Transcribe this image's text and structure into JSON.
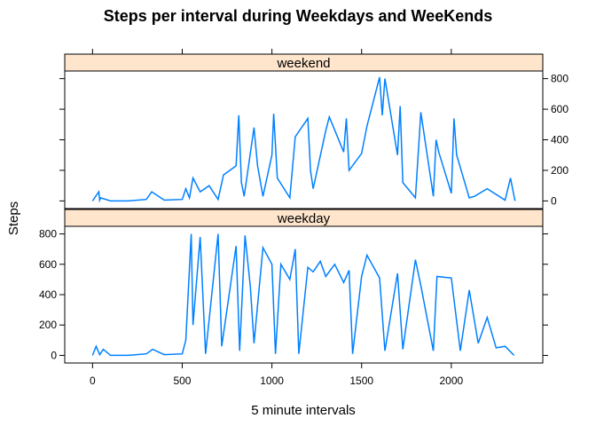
{
  "chart_data": {
    "type": "line",
    "title": "Steps per interval during Weekdays and WeeKends",
    "xlabel": "5 minute intervals",
    "ylabel": "Steps",
    "xlim": [
      -155,
      2510
    ],
    "ylim": [
      -50,
      850
    ],
    "xticks": [
      0,
      500,
      1000,
      1500,
      2000
    ],
    "yticks": [
      0,
      200,
      400,
      600,
      800
    ],
    "grid": false,
    "colors": {
      "line": "#0080ff",
      "strip": "#ffe5cc",
      "frame": "#000000"
    },
    "panels": [
      {
        "label": "weekend",
        "y_axis_side": "right",
        "series": [
          {
            "x": [
              0,
              35,
              40,
              45,
              100,
              200,
              300,
              330,
              400,
              500,
              520,
              540,
              560,
              600,
              650,
              700,
              730,
              800,
              815,
              830,
              845,
              900,
              920,
              950,
              1000,
              1010,
              1030,
              1100,
              1130,
              1200,
              1215,
              1230,
              1300,
              1320,
              1400,
              1415,
              1430,
              1500,
              1530,
              1600,
              1615,
              1630,
              1700,
              1715,
              1730,
              1800,
              1830,
              1900,
              1915,
              1930,
              2000,
              2015,
              2030,
              2100,
              2130,
              2200,
              2300,
              2330,
              2355
            ],
            "y": [
              0,
              60,
              5,
              20,
              0,
              0,
              10,
              60,
              5,
              10,
              80,
              20,
              150,
              60,
              100,
              10,
              170,
              230,
              560,
              120,
              30,
              480,
              230,
              30,
              300,
              570,
              150,
              20,
              420,
              540,
              200,
              80,
              460,
              550,
              320,
              540,
              200,
              310,
              490,
              810,
              560,
              800,
              300,
              620,
              120,
              20,
              580,
              30,
              400,
              320,
              50,
              540,
              300,
              20,
              30,
              80,
              5,
              150,
              0
            ]
          }
        ]
      },
      {
        "label": "weekday",
        "y_axis_side": "left",
        "series": [
          {
            "x": [
              0,
              20,
              40,
              60,
              100,
              200,
              300,
              335,
              400,
              500,
              520,
              550,
              560,
              600,
              630,
              700,
              720,
              800,
              820,
              850,
              880,
              900,
              950,
              1000,
              1020,
              1050,
              1100,
              1130,
              1150,
              1200,
              1230,
              1270,
              1300,
              1350,
              1400,
              1430,
              1450,
              1500,
              1530,
              1600,
              1630,
              1700,
              1730,
              1800,
              1830,
              1900,
              1920,
              2000,
              2050,
              2100,
              2150,
              2200,
              2250,
              2300,
              2350
            ],
            "y": [
              0,
              60,
              5,
              40,
              0,
              0,
              10,
              40,
              5,
              10,
              100,
              800,
              200,
              780,
              10,
              800,
              60,
              720,
              30,
              790,
              450,
              80,
              710,
              600,
              10,
              600,
              500,
              700,
              10,
              580,
              550,
              620,
              520,
              600,
              480,
              560,
              10,
              520,
              660,
              510,
              30,
              540,
              40,
              630,
              460,
              30,
              520,
              510,
              30,
              430,
              80,
              250,
              50,
              60,
              0
            ]
          }
        ]
      }
    ]
  }
}
